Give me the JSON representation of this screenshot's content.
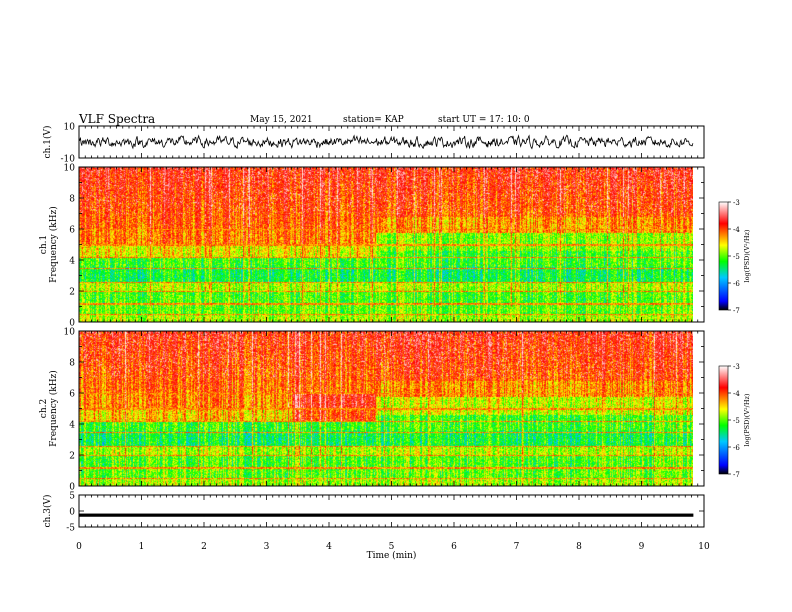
{
  "header": {
    "title": "VLF Spectra",
    "date": "May 15, 2021",
    "station": "station= KAP",
    "start": "start  UT =   17: 10: 0"
  },
  "chart_data": [
    {
      "type": "line",
      "panel": "waveform-ch1",
      "ylabel": "ch.1(V)",
      "ylim": [
        -10,
        10
      ],
      "yticks": [
        "10",
        "-10"
      ],
      "xlim": [
        0,
        10
      ],
      "x_end": 9.83,
      "series": [
        {
          "values_description_free": true,
          "approx_mean": 0,
          "approx_amplitude": 3.5
        }
      ]
    },
    {
      "type": "heatmap",
      "panel": "spectrogram-ch1",
      "ylabel": "ch.1\nFrequency (kHz)",
      "ylim": [
        0,
        10
      ],
      "yticks": [
        "0",
        "2",
        "4",
        "6",
        "8",
        "10"
      ],
      "xlim": [
        0,
        10
      ],
      "x_end": 9.83,
      "transition_min": 4.75,
      "band_edges_khz": [
        0.5,
        1.2,
        2.0,
        2.6,
        3.5,
        4.2,
        5.0,
        6.0
      ],
      "colorbar": {
        "label": "log(PSD)(V²/Hz)",
        "range": [
          -7,
          -3
        ],
        "ticks": [
          "-3",
          "-4",
          "-5",
          "-6",
          "-7"
        ],
        "colors": [
          "#000000",
          "#0000ff",
          "#00c8ff",
          "#00ff00",
          "#ffff00",
          "#ff0000",
          "#ffffff"
        ]
      }
    },
    {
      "type": "heatmap",
      "panel": "spectrogram-ch2",
      "ylabel": "ch.2\nFrequency (kHz)",
      "ylim": [
        0,
        10
      ],
      "yticks": [
        "0",
        "2",
        "4",
        "6",
        "8",
        "10"
      ],
      "xlim": [
        0,
        10
      ],
      "x_end": 9.83,
      "transition_min": 4.75,
      "band_edges_khz": [
        0.5,
        1.2,
        2.0,
        2.6,
        3.5,
        4.2,
        5.0,
        6.0
      ],
      "colorbar": {
        "label": "log(PSD)(V²/Hz)",
        "range": [
          -7,
          -3
        ],
        "ticks": [
          "-3",
          "-4",
          "-5",
          "-6",
          "-7"
        ],
        "colors": [
          "#000000",
          "#0000ff",
          "#00c8ff",
          "#00ff00",
          "#ffff00",
          "#ff0000",
          "#ffffff"
        ]
      }
    },
    {
      "type": "line",
      "panel": "waveform-ch3",
      "ylabel": "ch.3(V)",
      "ylim": [
        -5,
        5
      ],
      "yticks": [
        "5",
        "0",
        "-5"
      ],
      "xlim": [
        0,
        10
      ],
      "x_end": 9.83,
      "series": [
        {
          "approx_level": -1.3,
          "approx_thickness": 1.0
        }
      ]
    }
  ],
  "x_axis": {
    "label": "Time (min)",
    "ticks": [
      "0",
      "1",
      "2",
      "3",
      "4",
      "5",
      "6",
      "7",
      "8",
      "9",
      "10"
    ],
    "range": [
      0,
      10
    ]
  }
}
